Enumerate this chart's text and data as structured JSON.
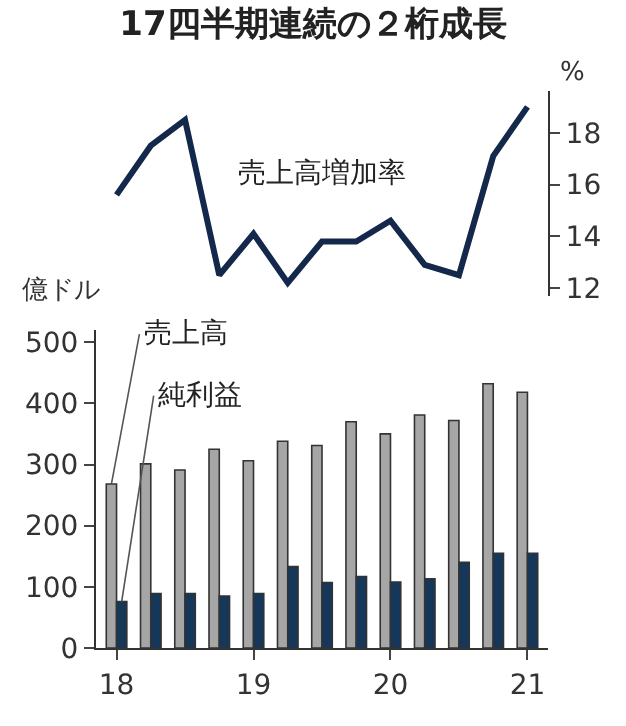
{
  "chart_data": [
    {
      "type": "line",
      "title": "17四半期連続の２桁成長",
      "ylabel": "%",
      "categories": [
        null,
        null,
        null,
        null,
        null,
        null,
        null,
        null,
        null,
        null,
        null,
        null,
        null
      ],
      "series": [
        {
          "name": "売上高増加率",
          "color": "#14284b",
          "values": [
            15.6,
            17.5,
            18.5,
            12.5,
            14.1,
            12.2,
            13.8,
            13.8,
            14.6,
            12.9,
            12.5,
            17.1,
            19.0
          ]
        }
      ],
      "ylim": [
        11.7,
        19.6
      ],
      "yticks": [
        12,
        14,
        16,
        18
      ],
      "tick_labels": "y"
    },
    {
      "type": "bar",
      "ylabel": "億ドル",
      "categories": [
        "18",
        null,
        null,
        null,
        "19",
        null,
        null,
        null,
        "20",
        null,
        null,
        null,
        "21"
      ],
      "series": [
        {
          "name": "売上高",
          "color": "#a6a6a6",
          "values": [
            268,
            301,
            291,
            325,
            306,
            338,
            331,
            370,
            350,
            381,
            372,
            432,
            418
          ]
        },
        {
          "name": "純利益",
          "color": "#14375a",
          "values": [
            76,
            89,
            89,
            85,
            89,
            133,
            107,
            117,
            108,
            113,
            140,
            155,
            155
          ]
        }
      ],
      "ylim": [
        0,
        520
      ],
      "yticks": [
        0,
        100,
        200,
        300,
        400,
        500
      ]
    }
  ]
}
